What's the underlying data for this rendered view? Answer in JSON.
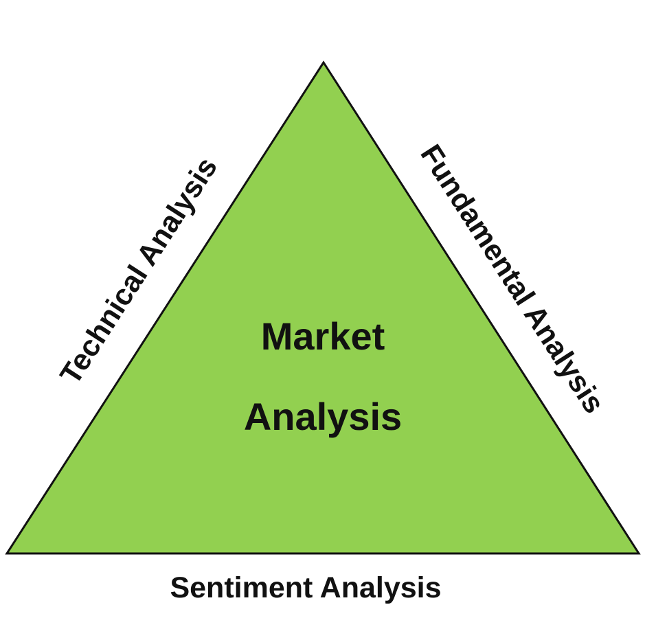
{
  "diagram": {
    "center_line1": "Market",
    "center_line2": "Analysis",
    "left_side": "Technical Analysis",
    "right_side": "Fundamental Analysis",
    "bottom_side": "Sentiment Analysis"
  },
  "colors": {
    "triangle_fill": "#92d050",
    "triangle_stroke": "#111111",
    "text": "#111111",
    "background": "#ffffff"
  }
}
